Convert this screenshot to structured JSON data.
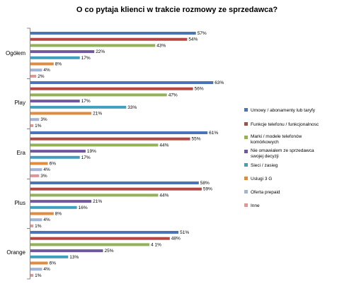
{
  "chart_data": {
    "type": "bar",
    "orientation": "horizontal",
    "title": "O co pytaja klienci w trakcie rozmowy ze sprzedawca?",
    "categories": [
      "Ogółem",
      "Play",
      "Era",
      "Plus",
      "Orange"
    ],
    "xlim": [
      0,
      70
    ],
    "grid": false,
    "legend_position": "right",
    "series": [
      {
        "name": "Umowy / abonamenty lub taryfy",
        "color": "#4a74b7",
        "values": [
          57,
          63,
          61,
          58,
          51
        ],
        "labels": [
          "57%",
          "63%",
          "61%",
          "58%",
          "51%"
        ]
      },
      {
        "name": "Funkcje telefonu / funkcjonalnosc",
        "color": "#b24744",
        "values": [
          54,
          56,
          55,
          59,
          48
        ],
        "labels": [
          "54%",
          "56%",
          "55%",
          "59%",
          "48%"
        ]
      },
      {
        "name": "Marki / modele telefonów komórkowych",
        "color": "#93b155",
        "values": [
          43,
          47,
          44,
          44,
          41
        ],
        "labels": [
          "43%",
          "47%",
          "44%",
          "44%",
          "4 1%"
        ]
      },
      {
        "name": "Nie omawialem ze sprzedawca swojej decyzji",
        "color": "#70579e",
        "values": [
          22,
          17,
          19,
          21,
          25
        ],
        "labels": [
          "22%",
          "17%",
          "19%",
          "21%",
          "25%"
        ]
      },
      {
        "name": "Sieci / zasieg",
        "color": "#3f9fbd",
        "values": [
          17,
          33,
          17,
          16,
          13
        ],
        "labels": [
          "17%",
          "33%",
          "17%",
          "16%",
          "13%"
        ]
      },
      {
        "name": "Uslugi 3 G",
        "color": "#e08c3e",
        "values": [
          8,
          21,
          6,
          8,
          6
        ],
        "labels": [
          "8%",
          "21%",
          "6%",
          "8%",
          "6%"
        ]
      },
      {
        "name": "Oferta prepaid",
        "color": "#a1b3d6",
        "values": [
          4,
          3,
          4,
          4,
          4
        ],
        "labels": [
          "4%",
          "3%",
          "4%",
          "4%",
          "4%"
        ]
      },
      {
        "name": "Inne",
        "color": "#dc9896",
        "values": [
          2,
          1,
          3,
          1,
          1
        ],
        "labels": [
          "2%",
          "1%",
          "3%",
          "1%",
          "1%"
        ]
      }
    ]
  }
}
